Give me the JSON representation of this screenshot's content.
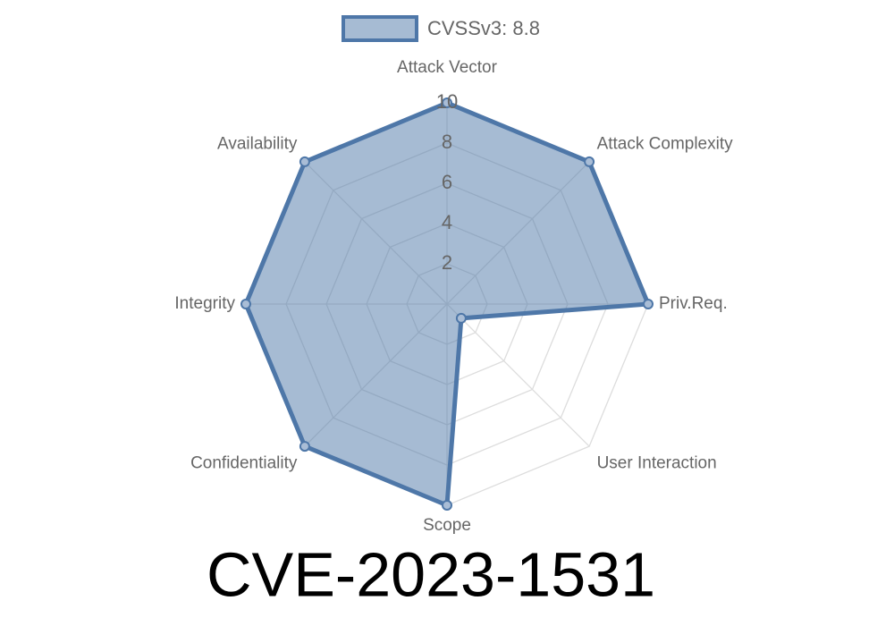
{
  "chart_data": {
    "type": "radar",
    "title": "CVE-2023-1531",
    "categories": [
      "Attack Vector",
      "Attack Complexity",
      "Priv.Req.",
      "User Interaction",
      "Scope",
      "Confidentiality",
      "Integrity",
      "Availability"
    ],
    "series": [
      {
        "name": "CVSSv3: 8.8",
        "color": "#4e77a8",
        "values": [
          10,
          10,
          10,
          1,
          10,
          10,
          10,
          10
        ]
      }
    ],
    "ylim": [
      0,
      10
    ],
    "yticks": [
      2,
      4,
      6,
      8,
      10
    ],
    "grid": true
  }
}
